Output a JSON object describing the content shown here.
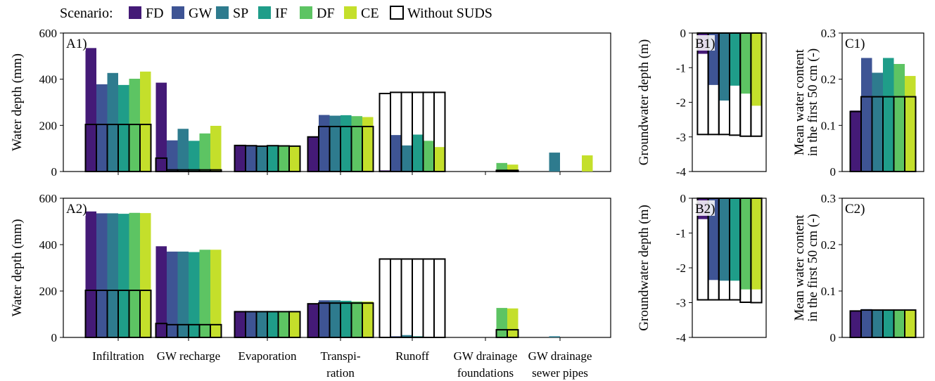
{
  "legend": {
    "title": "Scenario:",
    "entries": [
      {
        "label": "FD",
        "color": "#441a77"
      },
      {
        "label": "GW",
        "color": "#3e5494"
      },
      {
        "label": "SP",
        "color": "#2e7b8e"
      },
      {
        "label": "IF",
        "color": "#1f9d89"
      },
      {
        "label": "DF",
        "color": "#5dc463"
      },
      {
        "label": "CE",
        "color": "#c4df2b"
      },
      {
        "label": "Without SUDS",
        "color": "#ffffff",
        "outline": "#000000"
      }
    ]
  },
  "chart_data": [
    {
      "id": "A1",
      "panel_label": "A1)",
      "type": "bar",
      "ylabel": "Water depth (mm)",
      "ylim": [
        0,
        600
      ],
      "yticks": [
        "0",
        "200",
        "400",
        "600"
      ],
      "categories": [
        "Infiltration",
        "GW recharge",
        "Evaporation",
        "Transpi-\nration",
        "Runoff",
        "GW drainage\nfoundations",
        "GW drainage\nsewer pipes"
      ],
      "series": [
        {
          "name": "FD",
          "values": [
            535,
            385,
            113,
            152,
            5,
            0,
            0
          ]
        },
        {
          "name": "GW",
          "values": [
            378,
            135,
            112,
            245,
            158,
            0,
            0
          ]
        },
        {
          "name": "SP",
          "values": [
            427,
            185,
            110,
            242,
            113,
            0,
            82
          ]
        },
        {
          "name": "IF",
          "values": [
            375,
            133,
            112,
            244,
            160,
            0,
            0
          ]
        },
        {
          "name": "DF",
          "values": [
            402,
            165,
            111,
            240,
            133,
            37,
            0
          ]
        },
        {
          "name": "CE",
          "values": [
            433,
            198,
            110,
            236,
            106,
            30,
            70
          ]
        }
      ],
      "without_suds": [
        [
          204,
          204,
          204,
          204,
          204,
          204
        ],
        [
          58,
          7,
          7,
          7,
          7,
          7
        ],
        [
          113,
          112,
          110,
          112,
          111,
          110
        ],
        [
          150,
          195,
          195,
          195,
          195,
          195
        ],
        [
          338,
          343,
          343,
          343,
          343,
          343
        ],
        [
          0,
          0,
          0,
          0,
          5,
          5
        ],
        [
          0,
          0,
          0,
          0,
          0,
          0
        ]
      ]
    },
    {
      "id": "A2",
      "panel_label": "A2)",
      "type": "bar",
      "ylabel": "Water depth (mm)",
      "ylim": [
        0,
        600
      ],
      "yticks": [
        "0",
        "200",
        "400",
        "600"
      ],
      "categories": [
        "Infiltration",
        "GW recharge",
        "Evaporation",
        "Transpi-\nration",
        "Runoff",
        "GW drainage\nfoundations",
        "GW drainage\nsewer pipes"
      ],
      "series": [
        {
          "name": "FD",
          "values": [
            543,
            393,
            111,
            146,
            3,
            0,
            0
          ]
        },
        {
          "name": "GW",
          "values": [
            535,
            370,
            111,
            160,
            5,
            0,
            0
          ]
        },
        {
          "name": "SP",
          "values": [
            535,
            370,
            111,
            160,
            10,
            0,
            5
          ]
        },
        {
          "name": "IF",
          "values": [
            533,
            368,
            111,
            158,
            5,
            0,
            0
          ]
        },
        {
          "name": "DF",
          "values": [
            537,
            378,
            111,
            155,
            3,
            127,
            0
          ]
        },
        {
          "name": "CE",
          "values": [
            536,
            378,
            111,
            155,
            3,
            125,
            0
          ]
        }
      ],
      "without_suds": [
        [
          203,
          203,
          203,
          203,
          203,
          203
        ],
        [
          60,
          55,
          55,
          55,
          55,
          55
        ],
        [
          111,
          111,
          111,
          111,
          111,
          111
        ],
        [
          145,
          148,
          148,
          148,
          148,
          148
        ],
        [
          338,
          338,
          338,
          338,
          338,
          338
        ],
        [
          0,
          0,
          0,
          0,
          33,
          33
        ],
        [
          0,
          0,
          0,
          0,
          0,
          0
        ]
      ]
    },
    {
      "id": "B1",
      "panel_label": "B1)",
      "type": "bar",
      "ylabel": "Groundwater depth (m)",
      "ylim": [
        -4,
        0
      ],
      "yticks": [
        "0",
        "-1",
        "-2",
        "-3",
        "-4"
      ],
      "series": [
        {
          "name": "FD",
          "values": [
            -0.6
          ]
        },
        {
          "name": "GW",
          "values": [
            -1.5
          ]
        },
        {
          "name": "SP",
          "values": [
            -1.95
          ]
        },
        {
          "name": "IF",
          "values": [
            -1.52
          ]
        },
        {
          "name": "DF",
          "values": [
            -1.75
          ]
        },
        {
          "name": "CE",
          "values": [
            -2.1
          ]
        }
      ],
      "without_suds": [
        -2.93,
        -2.93,
        -2.93,
        -2.95,
        -2.98,
        -2.98
      ]
    },
    {
      "id": "B2",
      "panel_label": "B2)",
      "type": "bar",
      "ylabel": "Groundwater depth (m)",
      "ylim": [
        -4,
        0
      ],
      "yticks": [
        "0",
        "-1",
        "-2",
        "-3",
        "-4"
      ],
      "series": [
        {
          "name": "FD",
          "values": [
            -0.6
          ]
        },
        {
          "name": "GW",
          "values": [
            -2.35
          ]
        },
        {
          "name": "SP",
          "values": [
            -2.37
          ]
        },
        {
          "name": "IF",
          "values": [
            -2.37
          ]
        },
        {
          "name": "DF",
          "values": [
            -2.62
          ]
        },
        {
          "name": "CE",
          "values": [
            -2.62
          ]
        }
      ],
      "without_suds": [
        -2.92,
        -2.92,
        -2.92,
        -2.92,
        -2.99,
        -3.0
      ]
    },
    {
      "id": "C1",
      "panel_label": "C1)",
      "type": "bar",
      "ylabel": "Mean water content\nin the first 50 cm (-)",
      "ylim": [
        0,
        0.3
      ],
      "yticks": [
        "0",
        "0.1",
        "0.2",
        "0.3"
      ],
      "series": [
        {
          "name": "FD",
          "values": [
            0.132
          ]
        },
        {
          "name": "GW",
          "values": [
            0.246
          ]
        },
        {
          "name": "SP",
          "values": [
            0.214
          ]
        },
        {
          "name": "IF",
          "values": [
            0.246
          ]
        },
        {
          "name": "DF",
          "values": [
            0.233
          ]
        },
        {
          "name": "CE",
          "values": [
            0.207
          ]
        }
      ],
      "without_suds": [
        0.13,
        0.162,
        0.162,
        0.162,
        0.162,
        0.162
      ]
    },
    {
      "id": "C2",
      "panel_label": "C2)",
      "type": "bar",
      "ylabel": "Mean water content\nin the first 50 cm (-)",
      "ylim": [
        0,
        0.3
      ],
      "yticks": [
        "0",
        "0.1",
        "0.2",
        "0.3"
      ],
      "series": [
        {
          "name": "FD",
          "values": [
            0.057
          ]
        },
        {
          "name": "GW",
          "values": [
            0.061
          ]
        },
        {
          "name": "SP",
          "values": [
            0.06
          ]
        },
        {
          "name": "IF",
          "values": [
            0.06
          ]
        },
        {
          "name": "DF",
          "values": [
            0.058
          ]
        },
        {
          "name": "CE",
          "values": [
            0.058
          ]
        }
      ],
      "without_suds": [
        0.057,
        0.059,
        0.059,
        0.059,
        0.059,
        0.059
      ]
    }
  ]
}
